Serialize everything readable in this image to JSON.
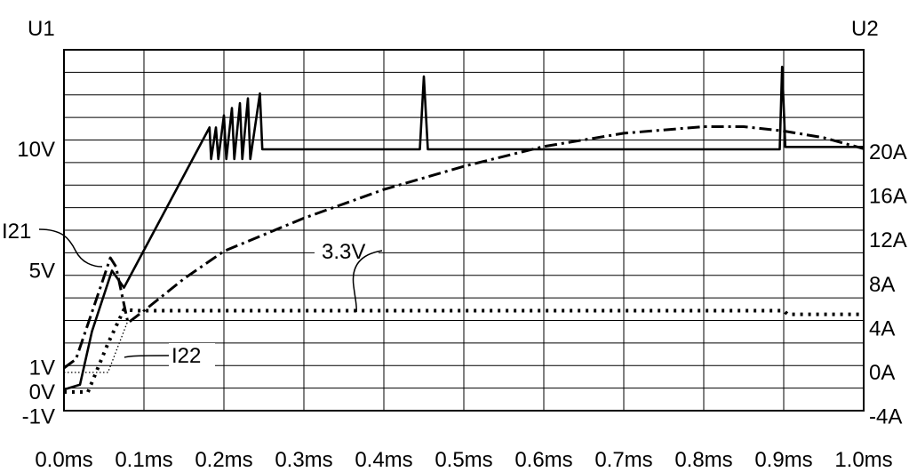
{
  "chart_data": {
    "type": "line",
    "x_unit": "ms",
    "xlim": [
      0.0,
      1.0
    ],
    "x_ticks": [
      "0.0ms",
      "0.1ms",
      "0.2ms",
      "0.3ms",
      "0.4ms",
      "0.5ms",
      "0.6ms",
      "0.7ms",
      "0.8ms",
      "0.9ms",
      "1.0ms"
    ],
    "left_axis": {
      "title": "U1",
      "unit": "V",
      "ticks": [
        {
          "label": "10V",
          "value": 10
        },
        {
          "label": "5V",
          "value": 5
        },
        {
          "label": "1V",
          "value": 1
        },
        {
          "label": "0V",
          "value": 0
        },
        {
          "label": "-1V",
          "value": -1
        }
      ]
    },
    "right_axis": {
      "title": "U2",
      "unit": "A",
      "ticks": [
        {
          "label": "20A",
          "value": 20
        },
        {
          "label": "16A",
          "value": 16
        },
        {
          "label": "12A",
          "value": 12
        },
        {
          "label": "8A",
          "value": 8
        },
        {
          "label": "4A",
          "value": 4
        },
        {
          "label": "0A",
          "value": 0
        },
        {
          "label": "-4A",
          "value": -4
        }
      ]
    },
    "grid": true,
    "annotations": [
      {
        "text": "I21",
        "target": "I21"
      },
      {
        "text": "I22",
        "target": "I22"
      },
      {
        "text": "3.3V",
        "target": "3.3V"
      }
    ],
    "series": [
      {
        "name": "U1",
        "axis": "left",
        "style": "solid",
        "points": [
          [
            0.0,
            0.1
          ],
          [
            0.02,
            0.3
          ],
          [
            0.035,
            2.5
          ],
          [
            0.06,
            5.0
          ],
          [
            0.075,
            4.3
          ],
          [
            0.182,
            10.9
          ],
          [
            0.184,
            9.6
          ],
          [
            0.19,
            10.9
          ],
          [
            0.193,
            9.6
          ],
          [
            0.2,
            11.4
          ],
          [
            0.203,
            9.6
          ],
          [
            0.21,
            11.7
          ],
          [
            0.213,
            9.6
          ],
          [
            0.22,
            11.9
          ],
          [
            0.223,
            9.6
          ],
          [
            0.23,
            12.1
          ],
          [
            0.233,
            9.6
          ],
          [
            0.245,
            12.3
          ],
          [
            0.248,
            10.0
          ],
          [
            0.25,
            10.0
          ],
          [
            0.445,
            10.0
          ],
          [
            0.45,
            13.0
          ],
          [
            0.455,
            10.0
          ],
          [
            0.895,
            10.0
          ],
          [
            0.898,
            13.4
          ],
          [
            0.902,
            10.1
          ],
          [
            1.0,
            10.1
          ]
        ]
      },
      {
        "name": "I21",
        "axis": "right",
        "style": "dash-dot",
        "points": [
          [
            0.0,
            0.4
          ],
          [
            0.015,
            1.2
          ],
          [
            0.045,
            7.6
          ],
          [
            0.058,
            10.4
          ],
          [
            0.065,
            9.6
          ],
          [
            0.08,
            4.5
          ],
          [
            0.1,
            5.6
          ],
          [
            0.15,
            8.5
          ],
          [
            0.2,
            11.0
          ],
          [
            0.3,
            14.0
          ],
          [
            0.4,
            16.6
          ],
          [
            0.5,
            18.7
          ],
          [
            0.6,
            20.5
          ],
          [
            0.7,
            21.7
          ],
          [
            0.8,
            22.3
          ],
          [
            0.85,
            22.3
          ],
          [
            0.9,
            21.9
          ],
          [
            0.95,
            21.3
          ],
          [
            1.0,
            20.3
          ]
        ]
      },
      {
        "name": "3.3V",
        "axis": "left",
        "style": "dotted",
        "points": [
          [
            0.0,
            0.0
          ],
          [
            0.03,
            0.0
          ],
          [
            0.055,
            2.0
          ],
          [
            0.075,
            3.4
          ],
          [
            0.09,
            3.35
          ],
          [
            0.9,
            3.35
          ],
          [
            0.905,
            3.2
          ],
          [
            1.0,
            3.2
          ]
        ]
      },
      {
        "name": "I22",
        "axis": "right",
        "style": "thin-dotted",
        "points": [
          [
            0.0,
            0.0
          ],
          [
            0.055,
            0.0
          ],
          [
            0.08,
            4.7
          ]
        ]
      }
    ]
  }
}
